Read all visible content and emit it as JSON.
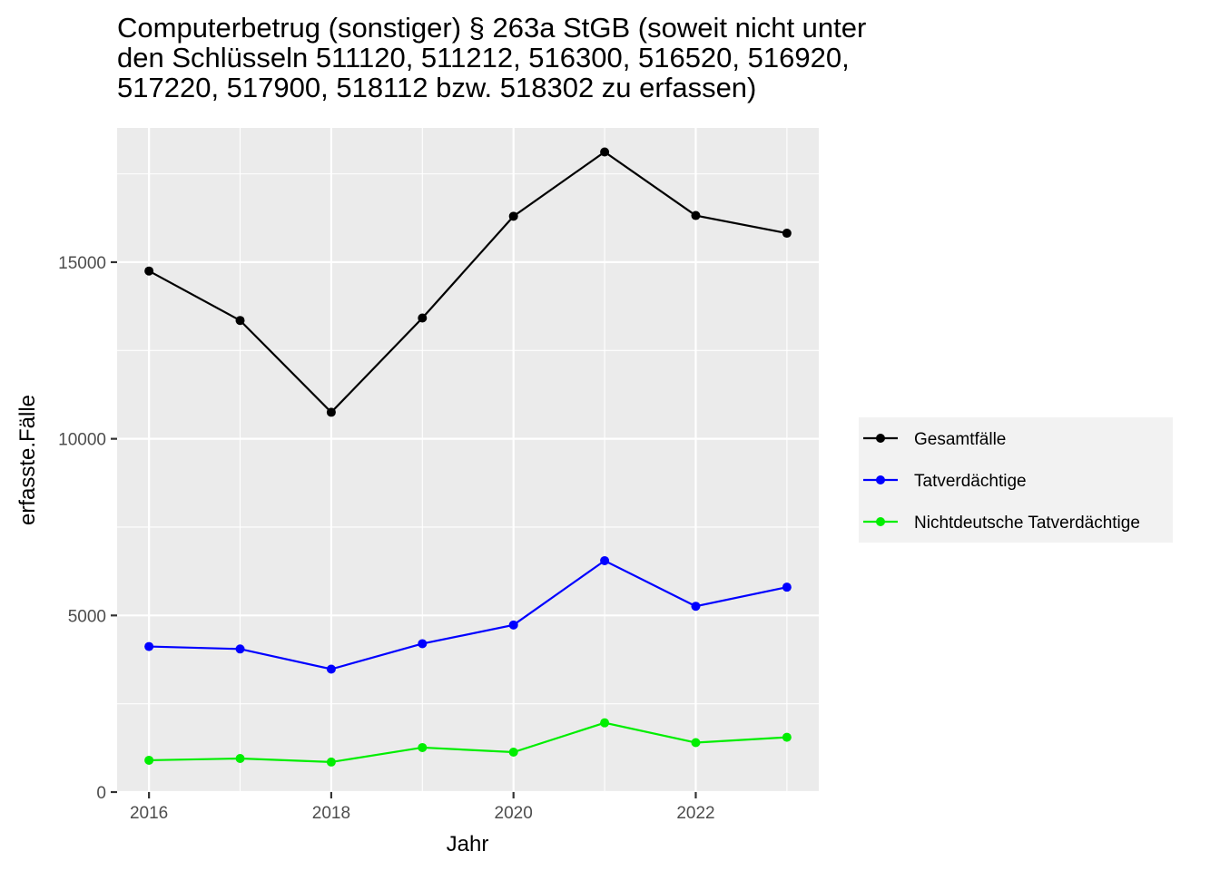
{
  "chart_data": {
    "type": "line",
    "title_lines": [
      "Computerbetrug (sonstiger) § 263a StGB (soweit nicht unter",
      "den Schlüsseln 511120, 511212, 516300, 516520, 516920,",
      "517220, 517900, 518112 bzw. 518302 zu erfassen)"
    ],
    "xlabel": "Jahr",
    "ylabel": "erfasste.Fälle",
    "x": [
      2016,
      2017,
      2018,
      2019,
      2020,
      2021,
      2022,
      2023
    ],
    "xlim": [
      2015.65,
      2023.35
    ],
    "ylim": [
      0,
      18800
    ],
    "x_ticks": [
      {
        "value": 2016,
        "label": "2016"
      },
      {
        "value": 2018,
        "label": "2018"
      },
      {
        "value": 2020,
        "label": "2020"
      },
      {
        "value": 2022,
        "label": "2022"
      }
    ],
    "y_ticks": [
      {
        "value": 0,
        "label": "0"
      },
      {
        "value": 5000,
        "label": "5000"
      },
      {
        "value": 10000,
        "label": "10000"
      },
      {
        "value": 15000,
        "label": "15000"
      }
    ],
    "grid": true,
    "legend_position": "right",
    "series": [
      {
        "name": "Gesamtfälle",
        "color": "#000000",
        "values": [
          14750,
          13350,
          10750,
          13420,
          16300,
          18120,
          16320,
          15820
        ]
      },
      {
        "name": "Tatverdächtige",
        "color": "#0000ff",
        "values": [
          4120,
          4050,
          3480,
          4200,
          4730,
          6550,
          5260,
          5800
        ]
      },
      {
        "name": "Nichtdeutsche Tatverdächtige",
        "color": "#00ee00",
        "values": [
          900,
          950,
          850,
          1260,
          1130,
          1960,
          1400,
          1550
        ]
      }
    ]
  }
}
